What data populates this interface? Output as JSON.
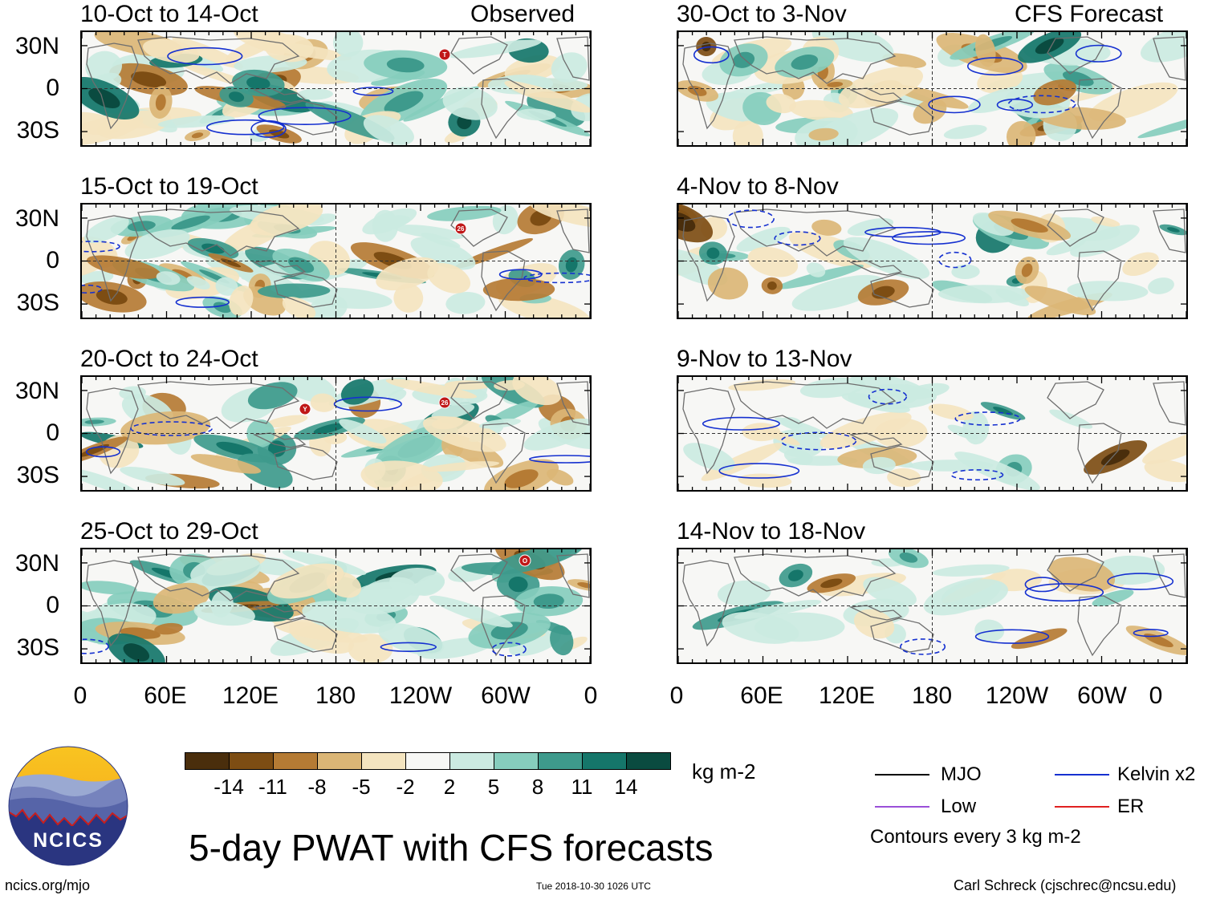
{
  "panels": {
    "left": [
      {
        "title": "10-Oct to 14-Oct",
        "tag": "Observed",
        "storms": [
          "T"
        ]
      },
      {
        "title": "15-Oct to 19-Oct",
        "tag": "",
        "storms": [
          "26"
        ]
      },
      {
        "title": "20-Oct to 24-Oct",
        "tag": "",
        "storms": [
          "Y",
          "26"
        ]
      },
      {
        "title": "25-Oct to 29-Oct",
        "tag": "",
        "storms": [
          "O"
        ]
      }
    ],
    "right": [
      {
        "title": "30-Oct to 3-Nov",
        "tag": "CFS Forecast"
      },
      {
        "title": "4-Nov to 8-Nov",
        "tag": ""
      },
      {
        "title": "9-Nov to 13-Nov",
        "tag": ""
      },
      {
        "title": "14-Nov to 18-Nov",
        "tag": ""
      }
    ]
  },
  "lat_labels": [
    "30N",
    "0",
    "30S"
  ],
  "lon_labels": [
    "0",
    "60E",
    "120E",
    "180",
    "120W",
    "60W",
    "0"
  ],
  "colorbar": {
    "labels": [
      "-14",
      "-11",
      "-8",
      "-5",
      "-2",
      "2",
      "5",
      "8",
      "11",
      "14"
    ],
    "colors": [
      "#4a2e0c",
      "#7d4d13",
      "#b57b34",
      "#dbb676",
      "#f4e4bf",
      "#f7f7f5",
      "#cbeae1",
      "#86cdbd",
      "#3e9a8c",
      "#15766a",
      "#0a4b40"
    ],
    "units": "kg m-2"
  },
  "legend": {
    "items": [
      {
        "label": "MJO",
        "color": "#000000"
      },
      {
        "label": "Kelvin x2",
        "color": "#1530d0"
      },
      {
        "label": "Low",
        "color": "#9a50d8"
      },
      {
        "label": "ER",
        "color": "#e02020"
      }
    ],
    "note": "Contours every 3 kg m-2"
  },
  "title": "5-day PWAT with CFS forecasts",
  "logo_text": "NCICS",
  "footer": {
    "url": "ncics.org/mjo",
    "timestamp": "Tue 2018-10-30 1026 UTC",
    "credit": "Carl Schreck (cjschrec@ncsu.edu)"
  }
}
